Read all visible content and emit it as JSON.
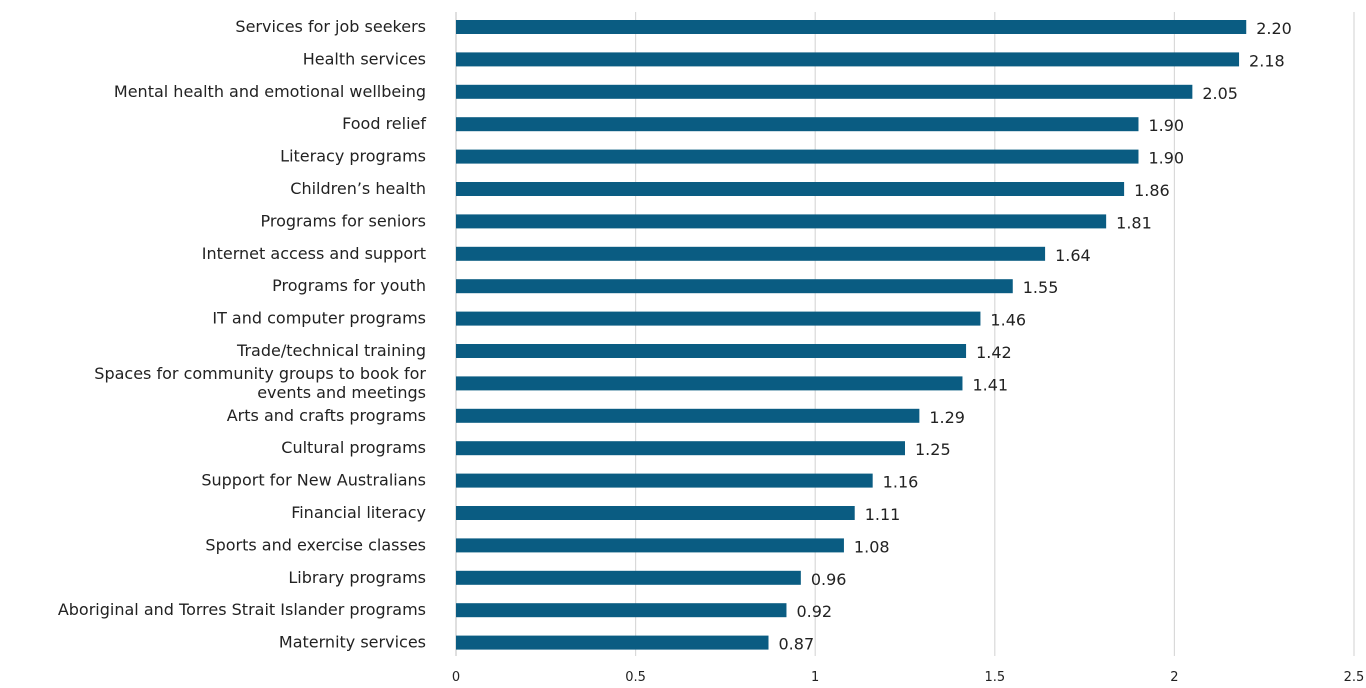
{
  "chart_data": {
    "type": "bar",
    "orientation": "horizontal",
    "title": "",
    "xlabel": "",
    "ylabel": "",
    "xlim": [
      0,
      2.5
    ],
    "x_ticks": [
      0,
      0.5,
      1,
      1.5,
      2,
      2.5
    ],
    "x_tick_labels": [
      "0",
      "0.5",
      "1",
      "1.5",
      "2",
      "2.5"
    ],
    "grid": true,
    "legend": "none",
    "bar_color": "#0a5c82",
    "categories": [
      [
        "Services for job seekers"
      ],
      [
        "Health services"
      ],
      [
        "Mental health and emotional wellbeing"
      ],
      [
        "Food relief"
      ],
      [
        "Literacy programs"
      ],
      [
        "Children’s health"
      ],
      [
        "Programs for seniors"
      ],
      [
        "Internet access and support"
      ],
      [
        "Programs for youth"
      ],
      [
        "IT and computer programs"
      ],
      [
        "Trade/technical training"
      ],
      [
        "Spaces for community groups to book for",
        "events and meetings"
      ],
      [
        "Arts and crafts programs"
      ],
      [
        "Cultural programs"
      ],
      [
        "Support for New Australians"
      ],
      [
        "Financial literacy"
      ],
      [
        "Sports and exercise classes"
      ],
      [
        "Library programs"
      ],
      [
        "Aboriginal and Torres Strait Islander programs"
      ],
      [
        "Maternity services"
      ]
    ],
    "values": [
      2.2,
      2.18,
      2.05,
      1.9,
      1.9,
      1.86,
      1.81,
      1.64,
      1.55,
      1.46,
      1.42,
      1.41,
      1.29,
      1.25,
      1.16,
      1.11,
      1.08,
      0.96,
      0.92,
      0.87
    ],
    "value_labels": [
      "2.20",
      "2.18",
      "2.05",
      "1.90",
      "1.90",
      "1.86",
      "1.81",
      "1.64",
      "1.55",
      "1.46",
      "1.42",
      "1.41",
      "1.29",
      "1.25",
      "1.16",
      "1.11",
      "1.08",
      "0.96",
      "0.92",
      "0.87"
    ]
  }
}
